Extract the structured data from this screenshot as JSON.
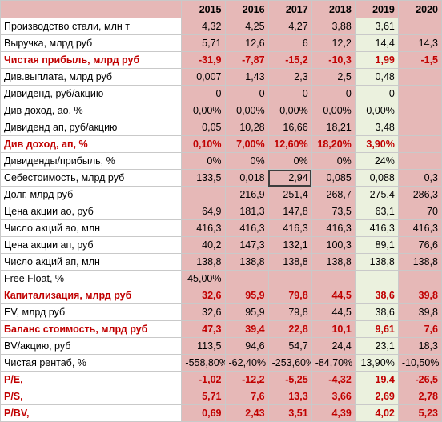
{
  "years": [
    "2015",
    "2016",
    "2017",
    "2018",
    "2019",
    "2020"
  ],
  "forecast_year_index": 4,
  "colors": {
    "cell_fill": "#e6b8b7",
    "forecast_fill": "#ebf1de",
    "highlight_text": "#c00000"
  },
  "rows": [
    {
      "label": "Производство стали, млн т",
      "values": [
        "4,32",
        "4,25",
        "4,27",
        "3,88",
        "3,61",
        ""
      ],
      "highlight": false
    },
    {
      "label": "Выручка, млрд руб",
      "values": [
        "5,71",
        "12,6",
        "6",
        "12,2",
        "14,4",
        "14,3"
      ],
      "highlight": false
    },
    {
      "label": "Чистая прибыль, млрд руб",
      "values": [
        "-31,9",
        "-7,87",
        "-15,2",
        "-10,3",
        "1,99",
        "-1,5"
      ],
      "highlight": true
    },
    {
      "label": "Див.выплата, млрд руб",
      "values": [
        "0,007",
        "1,43",
        "2,3",
        "2,5",
        "0,48",
        ""
      ],
      "highlight": false
    },
    {
      "label": "Дивиденд, руб/акцию",
      "values": [
        "0",
        "0",
        "0",
        "0",
        "0",
        ""
      ],
      "highlight": false
    },
    {
      "label": "Див доход, ао, %",
      "values": [
        "0,00%",
        "0,00%",
        "0,00%",
        "0,00%",
        "0,00%",
        ""
      ],
      "highlight": false
    },
    {
      "label": "Дивиденд ап, руб/акцию",
      "values": [
        "0,05",
        "10,28",
        "16,66",
        "18,21",
        "3,48",
        ""
      ],
      "highlight": false
    },
    {
      "label": "Див доход, ап, %",
      "values": [
        "0,10%",
        "7,00%",
        "12,60%",
        "18,20%",
        "3,90%",
        ""
      ],
      "highlight": true
    },
    {
      "label": "Дивиденды/прибыль, %",
      "values": [
        "0%",
        "0%",
        "0%",
        "0%",
        "24%",
        ""
      ],
      "highlight": false
    },
    {
      "label": "Себестоимость, млрд руб",
      "values": [
        "133,5",
        "0,018",
        "2,94",
        "0,085",
        "0,088",
        "0,3"
      ],
      "highlight": false
    },
    {
      "label": "Долг, млрд руб",
      "values": [
        "",
        "216,9",
        "251,4",
        "268,7",
        "275,4",
        "286,3"
      ],
      "highlight": false
    },
    {
      "label": "Цена акции ао, руб",
      "values": [
        "64,9",
        "181,3",
        "147,8",
        "73,5",
        "63,1",
        "70"
      ],
      "highlight": false
    },
    {
      "label": "Число акций ао, млн",
      "values": [
        "416,3",
        "416,3",
        "416,3",
        "416,3",
        "416,3",
        "416,3"
      ],
      "highlight": false
    },
    {
      "label": "Цена акции ап, руб",
      "values": [
        "40,2",
        "147,3",
        "132,1",
        "100,3",
        "89,1",
        "76,6"
      ],
      "highlight": false
    },
    {
      "label": "Число акций ап, млн",
      "values": [
        "138,8",
        "138,8",
        "138,8",
        "138,8",
        "138,8",
        "138,8"
      ],
      "highlight": false
    },
    {
      "label": "Free Float, %",
      "values": [
        "45,00%",
        "",
        "",
        "",
        "",
        ""
      ],
      "highlight": false
    },
    {
      "label": "Капитализация, млрд руб",
      "values": [
        "32,6",
        "95,9",
        "79,8",
        "44,5",
        "38,6",
        "39,8"
      ],
      "highlight": true
    },
    {
      "label": "EV, млрд руб",
      "values": [
        "32,6",
        "95,9",
        "79,8",
        "44,5",
        "38,6",
        "39,8"
      ],
      "highlight": false
    },
    {
      "label": "Баланс стоимость, млрд руб",
      "values": [
        "47,3",
        "39,4",
        "22,8",
        "10,1",
        "9,61",
        "7,6"
      ],
      "highlight": true
    },
    {
      "label": "BV/акцию, руб",
      "values": [
        "113,5",
        "94,6",
        "54,7",
        "24,4",
        "23,1",
        "18,3"
      ],
      "highlight": false
    },
    {
      "label": "Чистая рентаб, %",
      "values": [
        "-558,80%",
        "-62,40%",
        "-253,60%",
        "-84,70%",
        "13,90%",
        "-10,50%"
      ],
      "highlight": false
    },
    {
      "label": "P/E,",
      "values": [
        "-1,02",
        "-12,2",
        "-5,25",
        "-4,32",
        "19,4",
        "-26,5"
      ],
      "highlight": true
    },
    {
      "label": "P/S,",
      "values": [
        "5,71",
        "7,6",
        "13,3",
        "3,66",
        "2,69",
        "2,78"
      ],
      "highlight": true
    },
    {
      "label": "P/BV,",
      "values": [
        "0,69",
        "2,43",
        "3,51",
        "4,39",
        "4,02",
        "5,23"
      ],
      "highlight": true
    }
  ],
  "selected_cell": {
    "row": 9,
    "col": 2
  }
}
